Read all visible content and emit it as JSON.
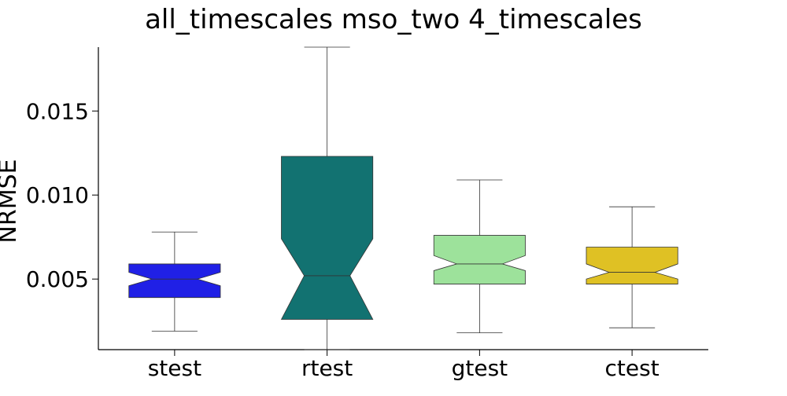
{
  "chart_data": {
    "type": "boxplot",
    "title": "all_timescales mso_two 4_timescales",
    "xlabel": "",
    "ylabel": "NRMSE",
    "ylim": [
      0.0008,
      0.0188
    ],
    "y_ticks": [
      0.005,
      0.01,
      0.015
    ],
    "y_tick_labels": [
      "0.005",
      "0.010",
      "0.015"
    ],
    "notched": true,
    "grid": false,
    "categories": [
      "stest",
      "rtest",
      "gtest",
      "ctest"
    ],
    "boxes": [
      {
        "label": "stest",
        "whisker_low": 0.0019,
        "q1": 0.0039,
        "median": 0.005,
        "q3": 0.0059,
        "whisker_high": 0.0078,
        "notch_low": 0.0046,
        "notch_high": 0.0054,
        "color": "#2020e6"
      },
      {
        "label": "rtest",
        "whisker_low": 0.0008,
        "q1": 0.0026,
        "median": 0.0052,
        "q3": 0.0123,
        "whisker_high": 0.0188,
        "notch_low": 0.0026,
        "notch_high": 0.0074,
        "color": "#127271"
      },
      {
        "label": "gtest",
        "whisker_low": 0.0018,
        "q1": 0.0047,
        "median": 0.0059,
        "q3": 0.0076,
        "whisker_high": 0.0109,
        "notch_low": 0.0055,
        "notch_high": 0.0064,
        "color": "#9de29b"
      },
      {
        "label": "ctest",
        "whisker_low": 0.0021,
        "q1": 0.0047,
        "median": 0.0054,
        "q3": 0.0069,
        "whisker_high": 0.0093,
        "notch_low": 0.005,
        "notch_high": 0.0059,
        "color": "#dfc124"
      }
    ]
  }
}
